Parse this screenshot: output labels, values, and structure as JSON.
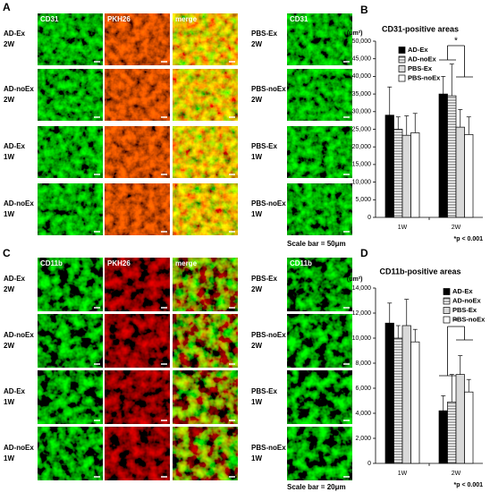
{
  "panel_labels": [
    "A",
    "B",
    "C",
    "D"
  ],
  "micrographs": [
    {
      "columns": [
        "CD31",
        "PKH26",
        "merge"
      ],
      "rows": [
        [
          "AD-Ex",
          "2W"
        ],
        [
          "AD-noEx",
          "2W"
        ],
        [
          "AD-Ex",
          "1W"
        ],
        [
          "AD-noEx",
          "1W"
        ]
      ],
      "pbs_column": "CD31",
      "pbs_rows": [
        [
          "PBS-Ex",
          "2W"
        ],
        [
          "PBS-noEx",
          "2W"
        ],
        [
          "PBS-Ex",
          "1W"
        ],
        [
          "PBS-noEx",
          "1W"
        ]
      ],
      "scale_bar": "Scale bar = 50μm"
    },
    {
      "columns": [
        "CD11b",
        "PKH26",
        "merge"
      ],
      "rows": [
        [
          "AD-Ex",
          "2W"
        ],
        [
          "AD-noEx",
          "2W"
        ],
        [
          "AD-Ex",
          "1W"
        ],
        [
          "AD-noEx",
          "1W"
        ]
      ],
      "pbs_column": "CD11b",
      "pbs_rows": [
        [
          "PBS-Ex",
          "2W"
        ],
        [
          "PBS-noEx",
          "2W"
        ],
        [
          "PBS-Ex",
          "1W"
        ],
        [
          "PBS-noEx",
          "1W"
        ]
      ],
      "scale_bar": "Scale bar = 20μm"
    }
  ],
  "chart_data": [
    {
      "type": "bar",
      "title": "CD31-positive areas",
      "y_label": "(μm²)",
      "categories": [
        "1W",
        "2W"
      ],
      "series": [
        {
          "name": "AD-Ex",
          "color": "#000000",
          "values": [
            29000,
            35000
          ],
          "errors": [
            8000,
            5000
          ]
        },
        {
          "name": "AD-noEx",
          "color": "#8c8c8c",
          "hatch": true,
          "values": [
            25000,
            34500
          ],
          "errors": [
            3500,
            9000
          ]
        },
        {
          "name": "PBS-Ex",
          "color": "#d9d9d9",
          "values": [
            23300,
            25600
          ],
          "errors": [
            5500,
            5000
          ]
        },
        {
          "name": "PBS-noEx",
          "color": "#ffffff",
          "values": [
            24000,
            23500
          ],
          "errors": [
            5500,
            5000
          ]
        }
      ],
      "ylim": [
        0,
        50000
      ],
      "yticks": [
        0,
        {
          "value": 5000,
          "label": "5,000"
        },
        {
          "value": 10000,
          "label": "10,000"
        },
        {
          "value": 15000,
          "label": "15,000"
        },
        {
          "value": 20000,
          "label": "20,000"
        },
        {
          "value": 25000,
          "label": "25,000"
        },
        {
          "value": 30000,
          "label": "30,000"
        },
        {
          "value": 35000,
          "label": "35,000"
        },
        {
          "value": 40000,
          "label": "40,000"
        },
        {
          "value": 45000,
          "label": "45,000"
        },
        {
          "value": 50000,
          "label": "50,000"
        }
      ],
      "legend": "upper left",
      "significance": "*",
      "note": "*p < 0.001"
    },
    {
      "type": "bar",
      "title": "CD11b-positive areas",
      "y_label": "(μm²)",
      "categories": [
        "1W",
        "2W"
      ],
      "series": [
        {
          "name": "AD-Ex",
          "color": "#000000",
          "values": [
            11200,
            4200
          ],
          "errors": [
            1600,
            1200
          ]
        },
        {
          "name": "AD-noEx",
          "color": "#8c8c8c",
          "hatch": true,
          "values": [
            10000,
            4900
          ],
          "errors": [
            1000,
            2200
          ]
        },
        {
          "name": "PBS-Ex",
          "color": "#d9d9d9",
          "values": [
            11000,
            7100
          ],
          "errors": [
            2100,
            1500
          ]
        },
        {
          "name": "PBS-noEx",
          "color": "#ffffff",
          "values": [
            9700,
            5700
          ],
          "errors": [
            1000,
            1000
          ]
        }
      ],
      "ylim": [
        0,
        14000
      ],
      "yticks": [
        0,
        {
          "value": 2000,
          "label": "2,000"
        },
        {
          "value": 4000,
          "label": "4,000"
        },
        {
          "value": 6000,
          "label": "6,000"
        },
        {
          "value": 8000,
          "label": "8,000"
        },
        {
          "value": 10000,
          "label": "10,000"
        },
        {
          "value": 12000,
          "label": "12,000"
        },
        {
          "value": 14000,
          "label": "14,000"
        }
      ],
      "legend": "upper right",
      "significance": "*",
      "note": "*p < 0.001"
    }
  ]
}
